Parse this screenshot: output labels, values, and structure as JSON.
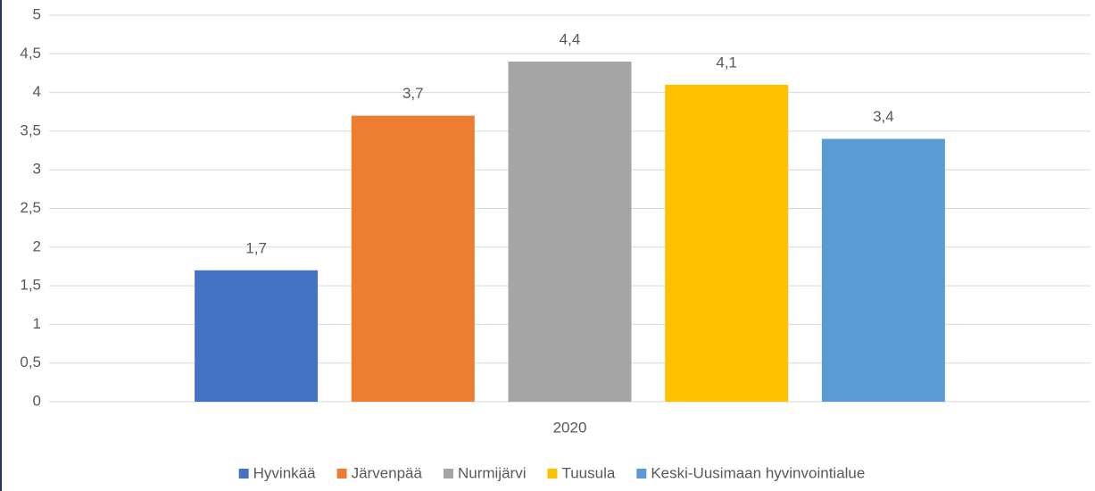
{
  "chart_data": {
    "type": "bar",
    "categories": [
      "2020"
    ],
    "series": [
      {
        "name": "Hyvinkää",
        "color": "#4472c4",
        "values": [
          1.7
        ],
        "value_labels": [
          "1,7"
        ]
      },
      {
        "name": "Järvenpää",
        "color": "#ed7d31",
        "values": [
          3.7
        ],
        "value_labels": [
          "3,7"
        ]
      },
      {
        "name": "Nurmijärvi",
        "color": "#a5a5a5",
        "values": [
          4.4
        ],
        "value_labels": [
          "4,4"
        ]
      },
      {
        "name": "Tuusula",
        "color": "#ffc000",
        "values": [
          4.1
        ],
        "value_labels": [
          "4,1"
        ]
      },
      {
        "name": "Keski-Uusimaan hyvinvointialue",
        "color": "#5b9bd5",
        "values": [
          3.4
        ],
        "value_labels": [
          "3,4"
        ]
      }
    ],
    "ylim": [
      0,
      5
    ],
    "yticks": [
      0,
      {
        "value": 0.5,
        "label": "0,5"
      },
      1,
      {
        "value": 1.5,
        "label": "1,5"
      },
      2,
      {
        "value": 2.5,
        "label": "2,5"
      },
      3,
      {
        "value": 3.5,
        "label": "3,5"
      },
      4,
      {
        "value": 4.5,
        "label": "4,5"
      },
      5
    ],
    "grid": true,
    "legend": "bottom"
  }
}
